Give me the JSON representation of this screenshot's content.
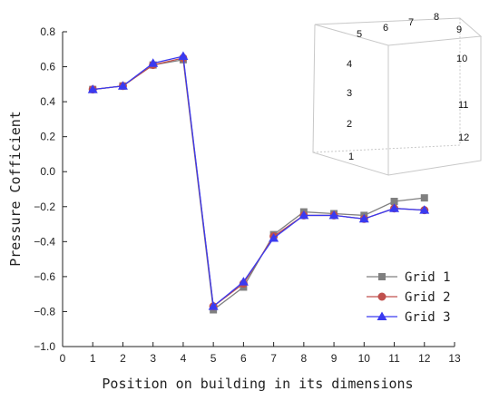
{
  "chart_data": {
    "type": "line",
    "title": "",
    "xlabel": "Position on building in its dimensions",
    "ylabel": "Pressure Cofficient",
    "xlim": [
      0,
      13
    ],
    "ylim": [
      -1.0,
      0.8
    ],
    "x_ticks": [
      0,
      1,
      2,
      3,
      4,
      5,
      6,
      7,
      8,
      9,
      10,
      11,
      12,
      13
    ],
    "y_ticks": [
      "0.8",
      "0.6",
      "0.4",
      "0.2",
      "0.0",
      "−0.2",
      "−0.4",
      "−0.6",
      "−0.8",
      "−1.0"
    ],
    "y_tick_values": [
      0.8,
      0.6,
      0.4,
      0.2,
      0.0,
      -0.2,
      -0.4,
      -0.6,
      -0.8,
      -1.0
    ],
    "x": [
      1,
      2,
      3,
      4,
      5,
      6,
      7,
      8,
      9,
      10,
      11,
      12
    ],
    "legend_position": "bottom-right",
    "grid": false,
    "series": [
      {
        "name": "Grid 1",
        "color": "#808080",
        "marker": "square",
        "values": [
          0.47,
          0.49,
          0.61,
          0.64,
          -0.79,
          -0.66,
          -0.36,
          -0.23,
          -0.24,
          -0.25,
          -0.17,
          -0.15
        ]
      },
      {
        "name": "Grid 2",
        "color": "#c0504d",
        "marker": "circle",
        "values": [
          0.47,
          0.49,
          0.61,
          0.65,
          -0.77,
          -0.64,
          -0.37,
          -0.25,
          -0.25,
          -0.27,
          -0.21,
          -0.22
        ]
      },
      {
        "name": "Grid 3",
        "color": "#3a3af0",
        "marker": "triangle",
        "values": [
          0.47,
          0.49,
          0.62,
          0.66,
          -0.77,
          -0.63,
          -0.38,
          -0.25,
          -0.25,
          -0.27,
          -0.21,
          -0.22
        ]
      }
    ],
    "inset": {
      "type": "building-wireframe",
      "labels": [
        "1",
        "2",
        "3",
        "4",
        "5",
        "6",
        "7",
        "8",
        "9",
        "10",
        "11",
        "12"
      ]
    }
  }
}
